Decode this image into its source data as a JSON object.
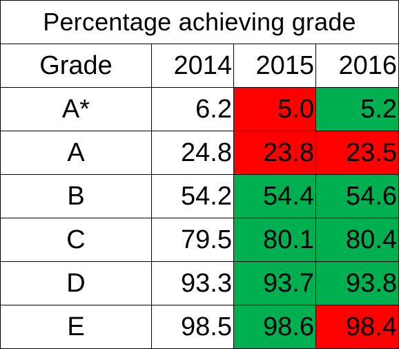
{
  "chart_data": {
    "type": "table",
    "title": "Percentage achieving grade",
    "columns": [
      "Grade",
      "2014",
      "2015",
      "2016"
    ],
    "rows": [
      {
        "grade": "A*",
        "values": [
          "6.2",
          "5.0",
          "5.2"
        ],
        "status": [
          "none",
          "down",
          "up"
        ]
      },
      {
        "grade": "A",
        "values": [
          "24.8",
          "23.8",
          "23.5"
        ],
        "status": [
          "none",
          "down",
          "down"
        ]
      },
      {
        "grade": "B",
        "values": [
          "54.2",
          "54.4",
          "54.6"
        ],
        "status": [
          "none",
          "up",
          "up"
        ]
      },
      {
        "grade": "C",
        "values": [
          "79.5",
          "80.1",
          "80.4"
        ],
        "status": [
          "none",
          "up",
          "up"
        ]
      },
      {
        "grade": "D",
        "values": [
          "93.3",
          "93.7",
          "93.8"
        ],
        "status": [
          "none",
          "up",
          "up"
        ]
      },
      {
        "grade": "E",
        "values": [
          "98.5",
          "98.6",
          "98.4"
        ],
        "status": [
          "none",
          "up",
          "down"
        ]
      }
    ],
    "colors": {
      "up": "#00b050",
      "down": "#ff0000",
      "none": "#ffffff"
    }
  }
}
